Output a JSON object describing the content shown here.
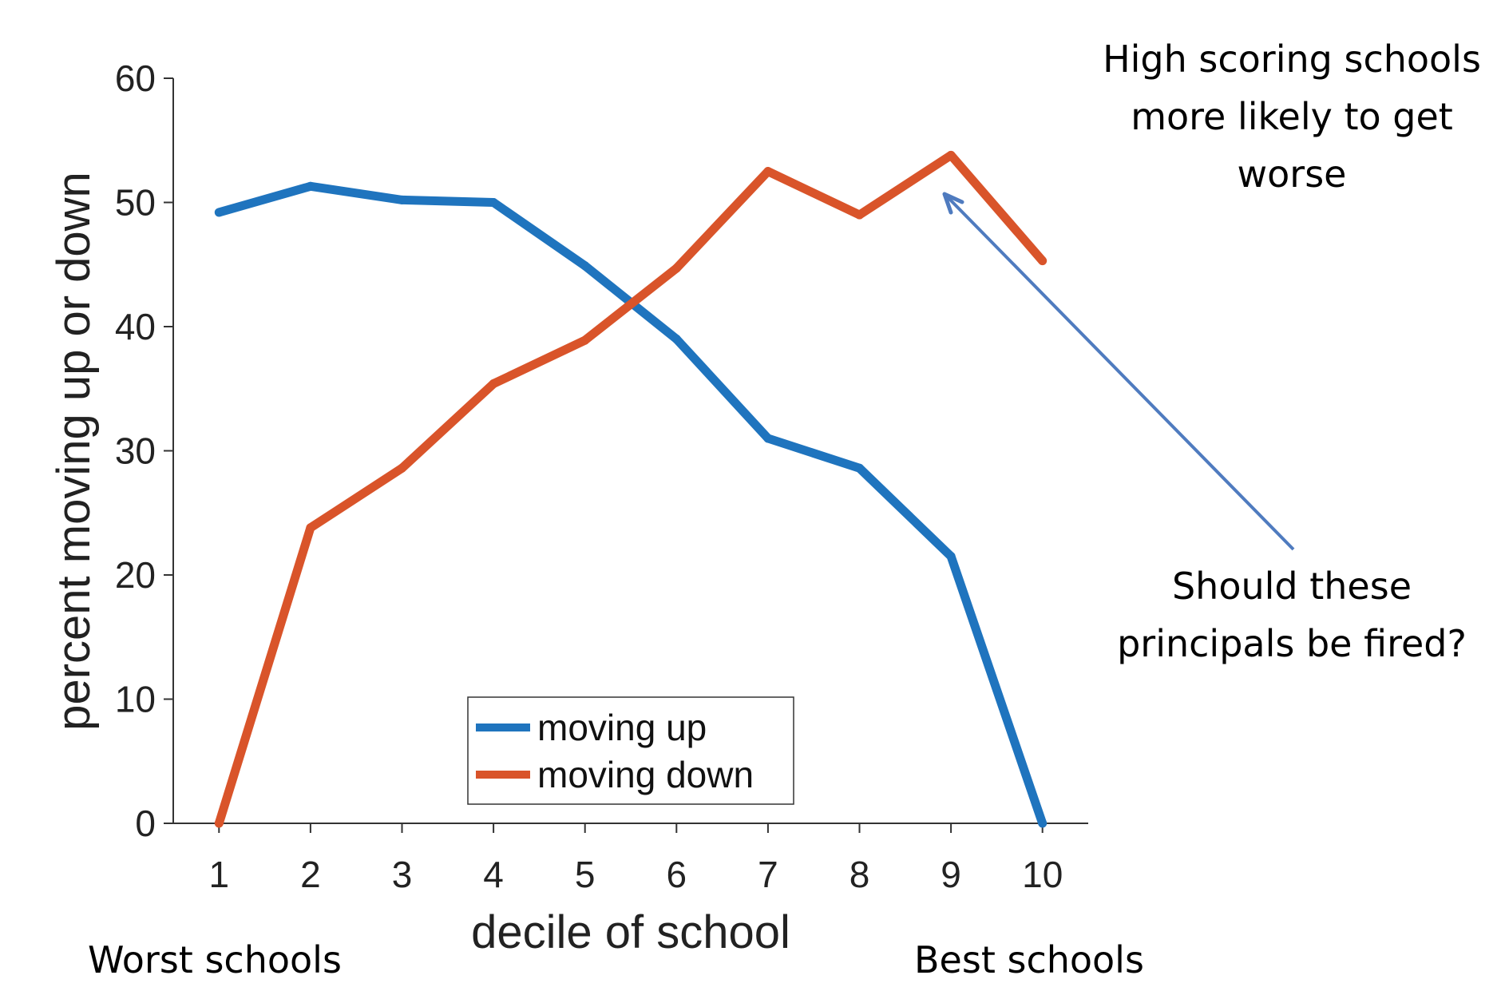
{
  "chart_data": {
    "type": "line",
    "x": [
      1,
      2,
      3,
      4,
      5,
      6,
      7,
      8,
      9,
      10
    ],
    "series": [
      {
        "name": "moving up",
        "color": "#1f74be",
        "values": [
          49.2,
          51.3,
          50.2,
          50.0,
          44.9,
          39.0,
          31.0,
          28.6,
          21.5,
          0.0
        ]
      },
      {
        "name": "moving down",
        "color": "#d9542a",
        "values": [
          0.0,
          23.8,
          28.6,
          35.4,
          38.9,
          44.7,
          52.5,
          49.0,
          53.8,
          45.3
        ]
      }
    ],
    "xlabel": "decile of school",
    "ylabel": "percent moving up or down",
    "xlim": [
      0.5,
      10.5
    ],
    "ylim": [
      0,
      60
    ],
    "yticks": [
      0,
      10,
      20,
      30,
      40,
      50,
      60
    ],
    "xticks": [
      1,
      2,
      3,
      4,
      5,
      6,
      7,
      8,
      9,
      10
    ],
    "legend_position": "bottom-center",
    "annotations": {
      "top_right": [
        "High scoring schools",
        "more likely to get",
        "worse"
      ],
      "question": [
        "Should these",
        "principals be fired?"
      ],
      "left_bottom": "Worst schools",
      "right_bottom": "Best schools",
      "arrow_color": "#4f7bbf"
    }
  }
}
